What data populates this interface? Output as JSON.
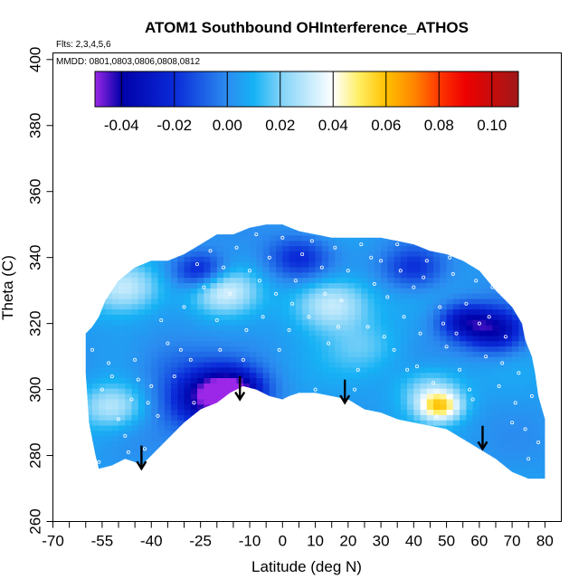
{
  "chart_data": {
    "type": "heatmap",
    "title": "ATOM1 Southbound OHInterference_ATHOS",
    "flights_label": "Flts: 2,3,4,5,6",
    "dates_label": "MMDD: 0801,0803,0806,0808,0812",
    "xlabel": "Latitude (deg N)",
    "ylabel": "Theta (C)",
    "xlim": [
      -70,
      85
    ],
    "ylim": [
      260,
      402
    ],
    "x_tick_labels": [
      "-70",
      "-55",
      "-40",
      "-25",
      "-10",
      "0",
      "10",
      "20",
      "30",
      "40",
      "50",
      "60",
      "70",
      "80"
    ],
    "x_tick_values": [
      -70,
      -55,
      -40,
      -25,
      -10,
      0,
      10,
      20,
      30,
      40,
      50,
      60,
      70,
      80
    ],
    "x_minor_ticks": [
      -65,
      -60,
      -50,
      -45,
      -35,
      -30,
      -20,
      -15,
      -5,
      5,
      15,
      25,
      35,
      45,
      55,
      65,
      75
    ],
    "y_ticks": [
      260,
      280,
      300,
      320,
      340,
      360,
      380,
      400
    ],
    "colorbar": {
      "range": [
        -0.05,
        0.11
      ],
      "tick_values": [
        -0.04,
        -0.02,
        0.0,
        0.02,
        0.04,
        0.06,
        0.08,
        0.1
      ],
      "tick_labels": [
        "-0.04",
        "-0.02",
        "0.00",
        "0.02",
        "0.04",
        "0.06",
        "0.08",
        "0.10"
      ],
      "stops": [
        {
          "v": -0.05,
          "c": "#9c27e8"
        },
        {
          "v": -0.04,
          "c": "#0000a8"
        },
        {
          "v": -0.02,
          "c": "#0a2ad8"
        },
        {
          "v": 0.0,
          "c": "#2b8cf0"
        },
        {
          "v": 0.01,
          "c": "#16b2f5"
        },
        {
          "v": 0.02,
          "c": "#7fd2f8"
        },
        {
          "v": 0.04,
          "c": "#ffffff"
        },
        {
          "v": 0.05,
          "c": "#ffee60"
        },
        {
          "v": 0.06,
          "c": "#ffc000"
        },
        {
          "v": 0.07,
          "c": "#ff8a00"
        },
        {
          "v": 0.08,
          "c": "#ff3800"
        },
        {
          "v": 0.09,
          "c": "#ee0000"
        },
        {
          "v": 0.11,
          "c": "#a01818"
        }
      ]
    },
    "domain_top": [
      [
        -60,
        317
      ],
      [
        -58,
        319
      ],
      [
        -56,
        322
      ],
      [
        -54,
        327
      ],
      [
        -50,
        333
      ],
      [
        -45,
        337
      ],
      [
        -40,
        339
      ],
      [
        -35,
        339
      ],
      [
        -30,
        341
      ],
      [
        -25,
        344
      ],
      [
        -20,
        347
      ],
      [
        -15,
        347
      ],
      [
        -10,
        349
      ],
      [
        -5,
        350
      ],
      [
        0,
        350
      ],
      [
        5,
        348
      ],
      [
        10,
        347
      ],
      [
        15,
        346
      ],
      [
        20,
        346
      ],
      [
        25,
        346
      ],
      [
        30,
        346
      ],
      [
        35,
        345
      ],
      [
        40,
        344
      ],
      [
        45,
        342
      ],
      [
        50,
        341
      ],
      [
        55,
        339
      ],
      [
        60,
        336
      ],
      [
        65,
        330
      ],
      [
        70,
        325
      ],
      [
        73,
        320
      ],
      [
        74,
        315
      ],
      [
        76,
        310
      ],
      [
        77,
        305
      ],
      [
        78,
        298
      ],
      [
        80,
        291
      ]
    ],
    "domain_bottom": [
      [
        80,
        273
      ],
      [
        75,
        273
      ],
      [
        70,
        275
      ],
      [
        65,
        279
      ],
      [
        60,
        282
      ],
      [
        55,
        285
      ],
      [
        50,
        288
      ],
      [
        45,
        289
      ],
      [
        40,
        290
      ],
      [
        35,
        291
      ],
      [
        30,
        293
      ],
      [
        25,
        294
      ],
      [
        20,
        297
      ],
      [
        15,
        298
      ],
      [
        10,
        299
      ],
      [
        5,
        299
      ],
      [
        2,
        298
      ],
      [
        0,
        297
      ],
      [
        -4,
        298
      ],
      [
        -8,
        300
      ],
      [
        -12,
        301
      ],
      [
        -16,
        299
      ],
      [
        -20,
        296
      ],
      [
        -25,
        294
      ],
      [
        -30,
        290
      ],
      [
        -35,
        285
      ],
      [
        -40,
        280
      ],
      [
        -43,
        277
      ],
      [
        -45,
        278
      ],
      [
        -48,
        279
      ],
      [
        -52,
        277
      ],
      [
        -56,
        276
      ],
      [
        -57,
        280
      ],
      [
        -59,
        290
      ],
      [
        -60,
        305
      ]
    ],
    "anomalies": [
      {
        "lat": -22,
        "theta": 297,
        "value": -0.045,
        "spread": 8
      },
      {
        "lat": -15,
        "theta": 300,
        "value": -0.035,
        "spread": 6
      },
      {
        "lat": 65,
        "theta": 318,
        "value": -0.04,
        "spread": 6
      },
      {
        "lat": 55,
        "theta": 321,
        "value": -0.03,
        "spread": 5
      },
      {
        "lat": -25,
        "theta": 336,
        "value": -0.03,
        "spread": 5
      },
      {
        "lat": 5,
        "theta": 340,
        "value": -0.025,
        "spread": 6
      },
      {
        "lat": 40,
        "theta": 337,
        "value": -0.025,
        "spread": 6
      },
      {
        "lat": -48,
        "theta": 331,
        "value": 0.03,
        "spread": 7
      },
      {
        "lat": -18,
        "theta": 330,
        "value": 0.028,
        "spread": 6
      },
      {
        "lat": 15,
        "theta": 326,
        "value": 0.03,
        "spread": 7
      },
      {
        "lat": -52,
        "theta": 295,
        "value": 0.025,
        "spread": 6
      },
      {
        "lat": 48,
        "theta": 295,
        "value": 0.045,
        "spread": 4
      },
      {
        "lat": 45,
        "theta": 300,
        "value": 0.02,
        "spread": 6
      },
      {
        "lat": -35,
        "theta": 308,
        "value": -0.01,
        "spread": 8
      },
      {
        "lat": 25,
        "theta": 313,
        "value": 0.012,
        "spread": 7
      }
    ],
    "arrows": [
      {
        "lat": -43,
        "theta_top": 283,
        "theta_tip": 276
      },
      {
        "lat": -13,
        "theta_top": 304,
        "theta_tip": 297
      },
      {
        "lat": 19,
        "theta_top": 303,
        "theta_tip": 296
      },
      {
        "lat": 61,
        "theta_top": 289,
        "theta_tip": 282
      }
    ],
    "sample_points": [
      [
        -58,
        312
      ],
      [
        -55,
        300
      ],
      [
        -52,
        304
      ],
      [
        -50,
        291
      ],
      [
        -48,
        286
      ],
      [
        -46,
        297
      ],
      [
        -45,
        309
      ],
      [
        -44,
        303
      ],
      [
        -42,
        282
      ],
      [
        -40,
        301
      ],
      [
        -38,
        292
      ],
      [
        -35,
        314
      ],
      [
        -33,
        304
      ],
      [
        -30,
        325
      ],
      [
        -28,
        309
      ],
      [
        -26,
        338
      ],
      [
        -24,
        331
      ],
      [
        -22,
        342
      ],
      [
        -20,
        321
      ],
      [
        -18,
        337
      ],
      [
        -16,
        329
      ],
      [
        -14,
        343
      ],
      [
        -12,
        309
      ],
      [
        -10,
        336
      ],
      [
        -8,
        347
      ],
      [
        -6,
        322
      ],
      [
        -4,
        340
      ],
      [
        -2,
        329
      ],
      [
        0,
        346
      ],
      [
        2,
        318
      ],
      [
        4,
        333
      ],
      [
        6,
        341
      ],
      [
        8,
        322
      ],
      [
        10,
        300
      ],
      [
        12,
        337
      ],
      [
        14,
        314
      ],
      [
        16,
        343
      ],
      [
        18,
        327
      ],
      [
        20,
        336
      ],
      [
        22,
        300
      ],
      [
        24,
        344
      ],
      [
        26,
        319
      ],
      [
        28,
        332
      ],
      [
        30,
        339
      ],
      [
        32,
        328
      ],
      [
        34,
        312
      ],
      [
        36,
        336
      ],
      [
        38,
        306
      ],
      [
        40,
        331
      ],
      [
        42,
        317
      ],
      [
        44,
        339
      ],
      [
        46,
        302
      ],
      [
        48,
        325
      ],
      [
        50,
        313
      ],
      [
        52,
        335
      ],
      [
        54,
        306
      ],
      [
        56,
        326
      ],
      [
        58,
        297
      ],
      [
        60,
        320
      ],
      [
        62,
        310
      ],
      [
        64,
        331
      ],
      [
        66,
        301
      ],
      [
        68,
        316
      ],
      [
        70,
        290
      ],
      [
        72,
        305
      ],
      [
        74,
        288
      ],
      [
        76,
        298
      ],
      [
        78,
        284
      ],
      [
        -56,
        278
      ],
      [
        -47,
        281
      ],
      [
        -53,
        308
      ],
      [
        -41,
        296
      ],
      [
        -37,
        321
      ],
      [
        -31,
        312
      ],
      [
        -27,
        296
      ],
      [
        -19,
        312
      ],
      [
        -11,
        318
      ],
      [
        -7,
        333
      ],
      [
        -1,
        312
      ],
      [
        3,
        326
      ],
      [
        9,
        345
      ],
      [
        13,
        329
      ],
      [
        17,
        319
      ],
      [
        23,
        306
      ],
      [
        27,
        340
      ],
      [
        31,
        316
      ],
      [
        35,
        344
      ],
      [
        37,
        322
      ],
      [
        41,
        307
      ],
      [
        43,
        334
      ],
      [
        47,
        292
      ],
      [
        49,
        320
      ],
      [
        51,
        340
      ],
      [
        53,
        317
      ],
      [
        57,
        300
      ],
      [
        59,
        333
      ],
      [
        63,
        322
      ],
      [
        67,
        308
      ],
      [
        71,
        296
      ],
      [
        75,
        279
      ]
    ]
  }
}
